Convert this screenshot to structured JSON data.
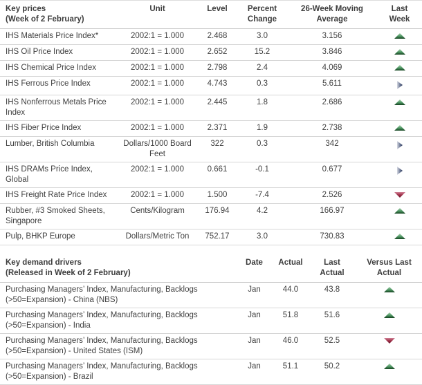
{
  "report": {
    "icons": {
      "up": "trend-up-icon",
      "down": "trend-down-icon",
      "flat": "trend-sideways-icon"
    },
    "colors": {
      "text": "#3f3f3f",
      "row_line": "#d6d6d6",
      "up_green": "#2e6b40",
      "down_red": "#8c2138",
      "flat_navy": "#3a4868"
    }
  },
  "price_table": {
    "title": "Key prices",
    "subtitle": "(Week of 2 February)",
    "columns": [
      "Unit",
      "Level",
      "Percent Change",
      "26-Week Moving Average",
      "Last Week"
    ],
    "rows": [
      {
        "name": "IHS Materials Price Index*",
        "unit": "2002:1 = 1.000",
        "level": "2.468",
        "pct": "3.0",
        "avg": "3.156",
        "dir": "up"
      },
      {
        "name": "IHS Oil Price Index",
        "unit": "2002:1 = 1.000",
        "level": "2.652",
        "pct": "15.2",
        "avg": "3.846",
        "dir": "up"
      },
      {
        "name": "IHS Chemical Price Index",
        "unit": "2002:1 = 1.000",
        "level": "2.798",
        "pct": "2.4",
        "avg": "4.069",
        "dir": "up"
      },
      {
        "name": "IHS Ferrous Price Index",
        "unit": "2002:1 = 1.000",
        "level": "4.743",
        "pct": "0.3",
        "avg": "5.611",
        "dir": "flat"
      },
      {
        "name": "IHS Nonferrous Metals Price Index",
        "unit": "2002:1 = 1.000",
        "level": "2.445",
        "pct": "1.8",
        "avg": "2.686",
        "dir": "up"
      },
      {
        "name": "IHS Fiber Price Index",
        "unit": "2002:1 = 1.000",
        "level": "2.371",
        "pct": "1.9",
        "avg": "2.738",
        "dir": "up"
      },
      {
        "name": "Lumber, British Columbia",
        "unit": "Dollars/1000 Board Feet",
        "level": "322",
        "pct": "0.3",
        "avg": "342",
        "dir": "flat"
      },
      {
        "name": "IHS DRAMs Price Index, Global",
        "unit": "2002:1 = 1.000",
        "level": "0.661",
        "pct": "-0.1",
        "avg": "0.677",
        "dir": "flat"
      },
      {
        "name": "IHS Freight Rate Price Index",
        "unit": "2002:1 = 1.000",
        "level": "1.500",
        "pct": "-7.4",
        "avg": "2.526",
        "dir": "down"
      },
      {
        "name": "Rubber, #3 Smoked Sheets, Singapore",
        "unit": "Cents/Kilogram",
        "level": "176.94",
        "pct": "4.2",
        "avg": "166.97",
        "dir": "up"
      },
      {
        "name": "Pulp, BHKP Europe",
        "unit": "Dollars/Metric Ton",
        "level": "752.17",
        "pct": "3.0",
        "avg": "730.83",
        "dir": "up"
      }
    ]
  },
  "demand_table": {
    "title": "Key demand drivers",
    "subtitle": "(Released in Week of 2 February)",
    "columns": [
      "Date",
      "Actual",
      "Last Actual",
      "Versus Last Actual"
    ],
    "rows": [
      {
        "name": "Purchasing Managers’ Index, Manufacturing, Backlogs (>50=Expansion) - China (NBS)",
        "date": "Jan",
        "actual": "44.0",
        "last": "43.8",
        "dir": "up"
      },
      {
        "name": "Purchasing Managers’ Index, Manufacturing, Backlogs (>50=Expansion) - India",
        "date": "Jan",
        "actual": "51.8",
        "last": "51.6",
        "dir": "up"
      },
      {
        "name": "Purchasing Managers’ Index, Manufacturing, Backlogs (>50=Expansion) - United States (ISM)",
        "date": "Jan",
        "actual": "46.0",
        "last": "52.5",
        "dir": "down"
      },
      {
        "name": "Purchasing Managers’ Index, Manufacturing, Backlogs (>50=Expansion) - Brazil",
        "date": "Jan",
        "actual": "51.1",
        "last": "50.2",
        "dir": "up"
      }
    ]
  }
}
